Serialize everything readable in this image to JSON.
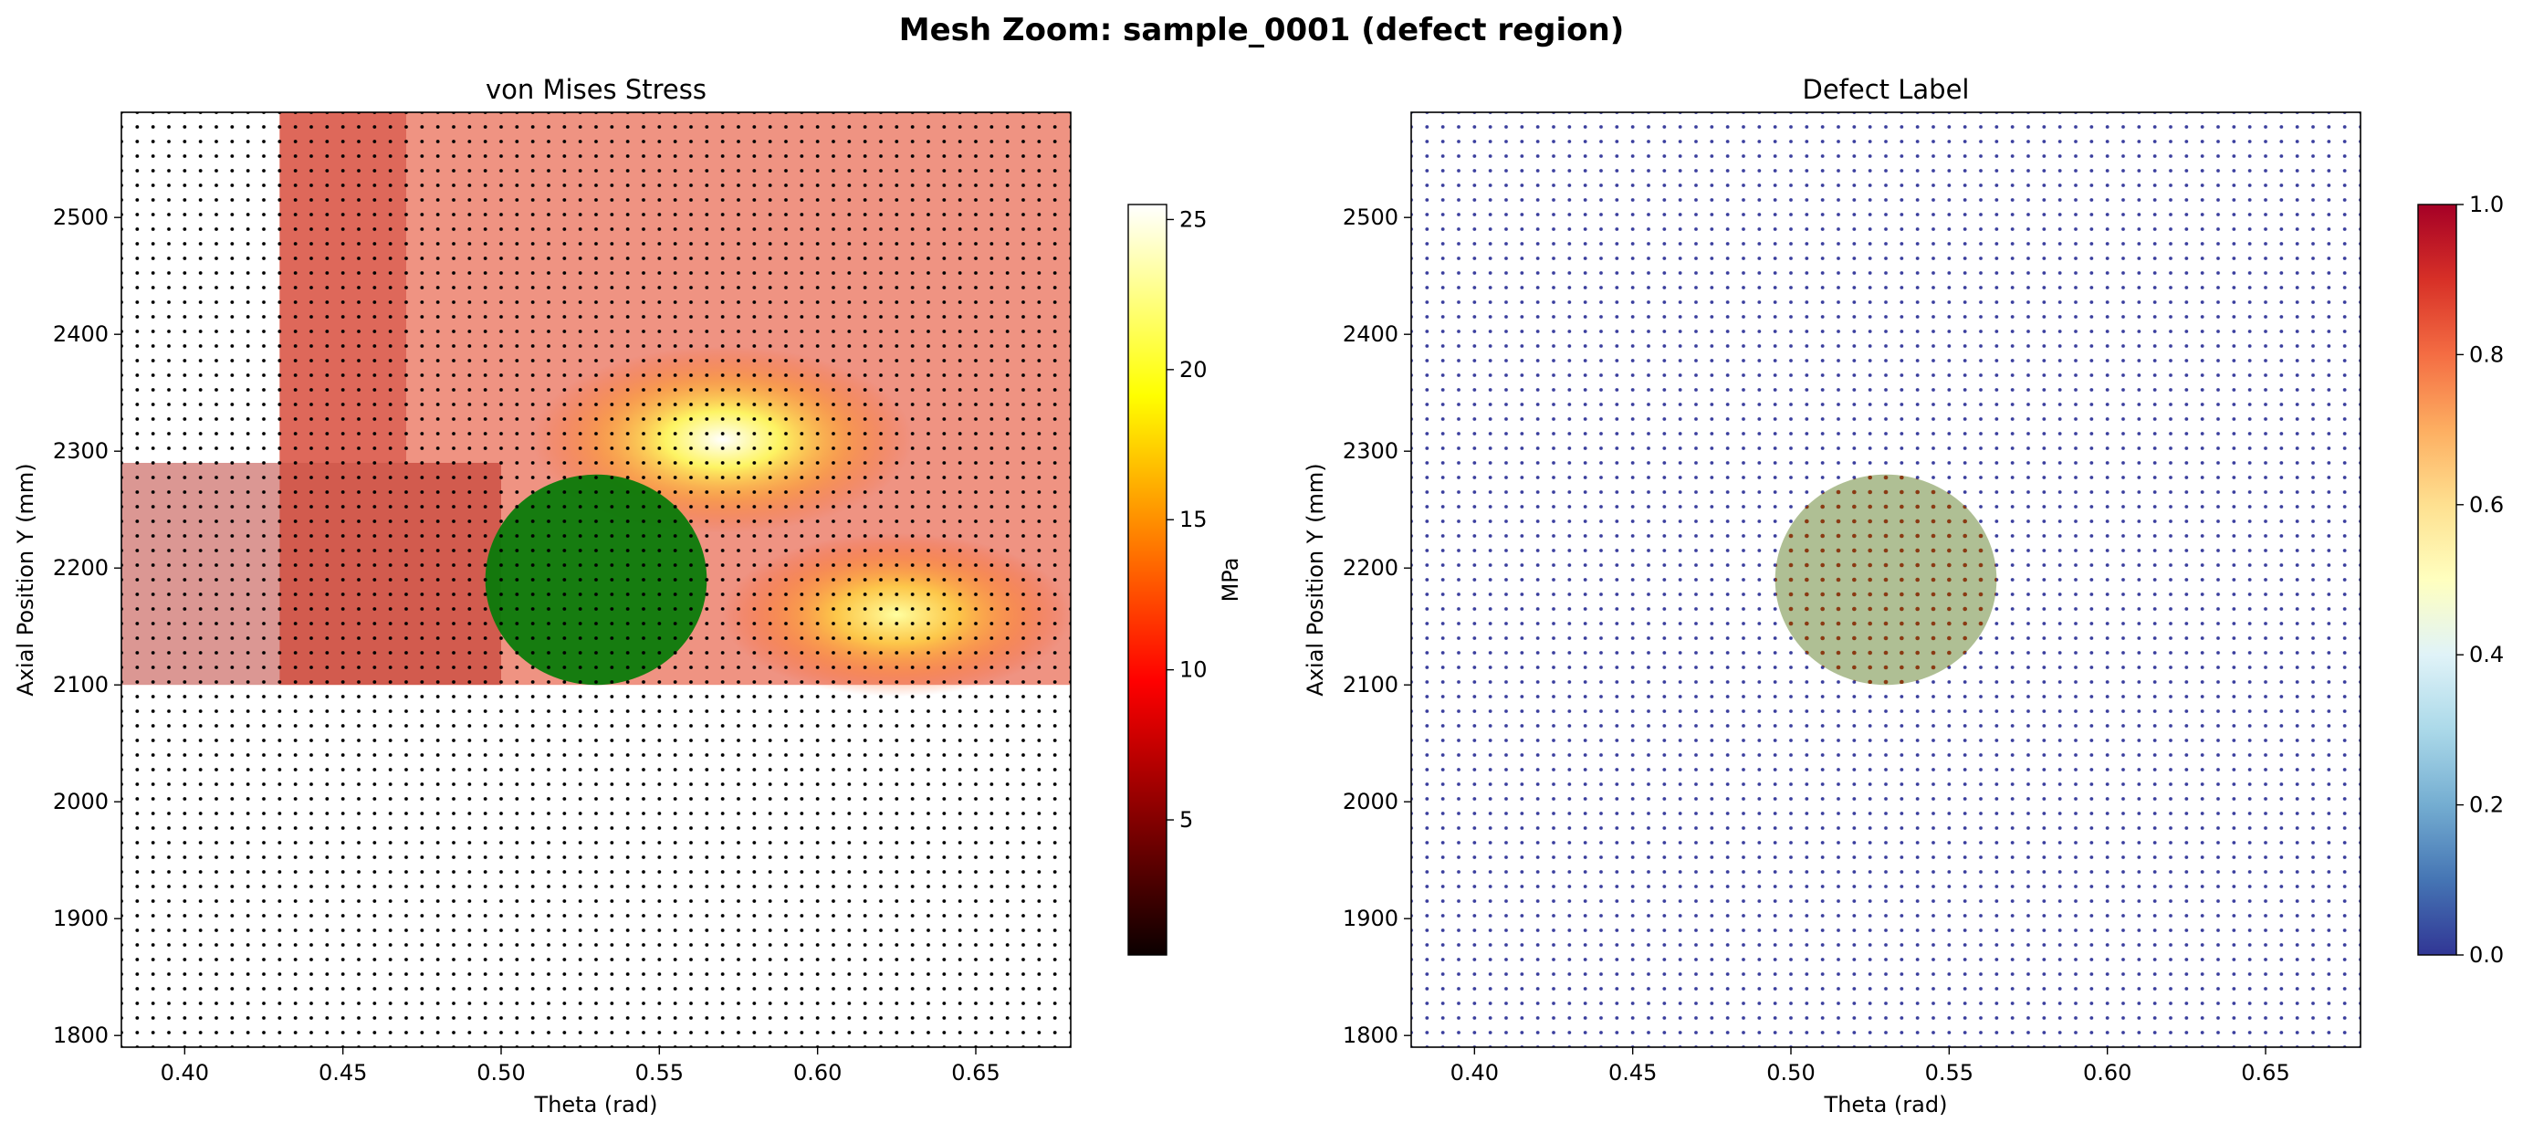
{
  "figure": {
    "suptitle": "Mesh Zoom: sample_0001 (defect region)"
  },
  "chart_data": [
    {
      "type": "scatter",
      "title": "von Mises Stress",
      "xlabel": "Theta (rad)",
      "ylabel": "Axial Position Y (mm)",
      "xlim": [
        0.38,
        0.68
      ],
      "ylim": [
        1790,
        2590
      ],
      "xticks": [
        "0.40",
        "0.45",
        "0.50",
        "0.55",
        "0.60",
        "0.65"
      ],
      "yticks": [
        "1800",
        "1900",
        "2000",
        "2100",
        "2200",
        "2300",
        "2400",
        "2500"
      ],
      "mesh": {
        "theta_step": 0.005,
        "y_step": 12.5
      },
      "colormap": "hot",
      "colorbar": {
        "label": "MPa",
        "range": [
          0.5,
          25.5
        ],
        "ticks": [
          "5",
          "10",
          "15",
          "20",
          "25"
        ]
      },
      "field_regions": [
        {
          "region": "background",
          "y_range": [
            1790,
            2100
          ],
          "value_mpa": 0.5
        },
        {
          "region": "stressed band",
          "theta_range": [
            0.43,
            0.68
          ],
          "y_range": [
            2100,
            2590
          ],
          "value_mpa_range": [
            7,
            11
          ]
        },
        {
          "region": "hot spot 1",
          "center": [
            0.57,
            2310
          ],
          "peak_mpa": 25.5
        },
        {
          "region": "hot spot 2",
          "center": [
            0.625,
            2160
          ],
          "peak_mpa": 22
        }
      ],
      "defect_overlay": {
        "color": "#0a7a0a",
        "center": [
          0.53,
          2190
        ],
        "radius_theta": 0.035,
        "radius_y": 90
      }
    },
    {
      "type": "scatter",
      "title": "Defect Label",
      "xlabel": "Theta (rad)",
      "ylabel": "Axial Position Y (mm)",
      "xlim": [
        0.38,
        0.68
      ],
      "ylim": [
        1790,
        2590
      ],
      "xticks": [
        "0.40",
        "0.45",
        "0.50",
        "0.55",
        "0.60",
        "0.65"
      ],
      "yticks": [
        "1800",
        "1900",
        "2000",
        "2100",
        "2200",
        "2300",
        "2400",
        "2500"
      ],
      "mesh": {
        "theta_step": 0.005,
        "y_step": 12.5
      },
      "colormap": "RdYlBu_r",
      "colorbar": {
        "label": "",
        "range": [
          0,
          1
        ],
        "ticks": [
          "0.0",
          "0.2",
          "0.4",
          "0.6",
          "0.8",
          "1.0"
        ]
      },
      "point_color_healthy": "#3b3f9e",
      "defect_region": {
        "label_value": 1.0,
        "center": [
          0.53,
          2190
        ],
        "radius_theta": 0.035,
        "radius_y": 90,
        "point_color": "#8a3a12",
        "fill_color": "#6e8b3d"
      }
    }
  ]
}
